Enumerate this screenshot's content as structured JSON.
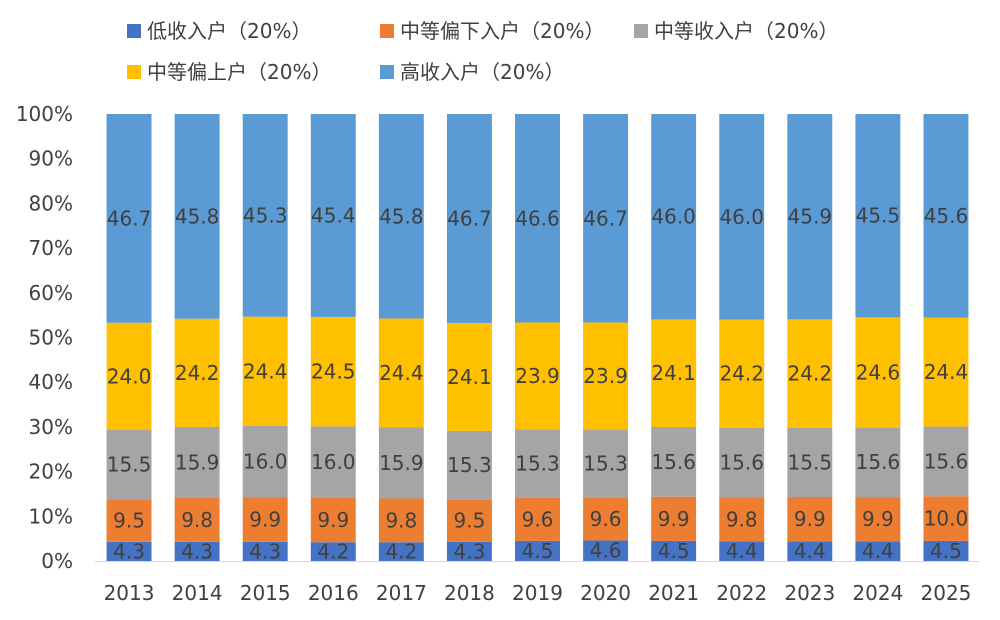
{
  "chart_data": {
    "type": "bar",
    "stacked": true,
    "percent_stacked": true,
    "categories": [
      "2013",
      "2014",
      "2015",
      "2016",
      "2017",
      "2018",
      "2019",
      "2020",
      "2021",
      "2022",
      "2023",
      "2024",
      "2025"
    ],
    "series": [
      {
        "name": "低收入户（20%）",
        "color": "#4472C4",
        "values": [
          4.3,
          4.3,
          4.3,
          4.2,
          4.2,
          4.3,
          4.5,
          4.6,
          4.5,
          4.4,
          4.4,
          4.4,
          4.5
        ]
      },
      {
        "name": "中等偏下入户（20%）",
        "color": "#ED7D31",
        "values": [
          9.5,
          9.8,
          9.9,
          9.9,
          9.8,
          9.5,
          9.6,
          9.6,
          9.9,
          9.8,
          9.9,
          9.9,
          10.0
        ]
      },
      {
        "name": "中等收入户（20%）",
        "color": "#A5A5A5",
        "values": [
          15.5,
          15.9,
          16.0,
          16.0,
          15.9,
          15.3,
          15.3,
          15.3,
          15.6,
          15.6,
          15.5,
          15.6,
          15.6
        ]
      },
      {
        "name": "中等偏上户（20%）",
        "color": "#FFC000",
        "values": [
          24.0,
          24.2,
          24.4,
          24.5,
          24.4,
          24.1,
          23.9,
          23.9,
          24.1,
          24.2,
          24.2,
          24.6,
          24.4
        ]
      },
      {
        "name": "高收入户（20%）",
        "color": "#5B9BD5",
        "values": [
          46.7,
          45.8,
          45.3,
          45.4,
          45.8,
          46.7,
          46.6,
          46.7,
          46.0,
          46.0,
          45.9,
          45.5,
          45.6
        ]
      }
    ],
    "yticks": [
      "0%",
      "10%",
      "20%",
      "30%",
      "40%",
      "50%",
      "60%",
      "70%",
      "80%",
      "90%",
      "100%"
    ],
    "ylim": [
      0,
      100
    ],
    "grid": false,
    "legend_position": "top"
  }
}
